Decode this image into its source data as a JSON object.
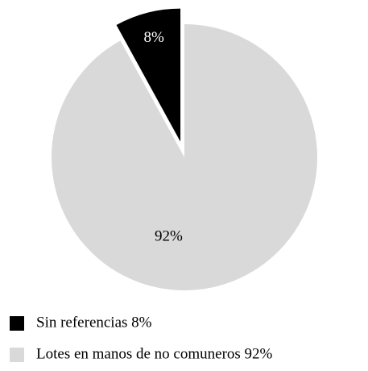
{
  "chart_data": {
    "type": "pie",
    "categories": [
      "Sin referencias 8%",
      "Lotes en manos de no comuneros 92%"
    ],
    "values": [
      8,
      92
    ],
    "value_labels": [
      "8%",
      "92%"
    ],
    "colors": [
      "#000000",
      "#d9d9d9"
    ],
    "label_colors": [
      "#ffffff",
      "#000000"
    ],
    "legend": "bottom"
  }
}
